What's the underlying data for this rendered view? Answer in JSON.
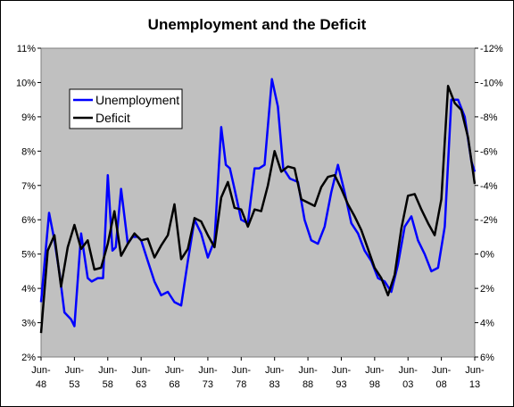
{
  "chart_data": {
    "type": "line",
    "title": "Unemployment and the Deficit",
    "x_tick_labels": [
      [
        "Jun-",
        "48"
      ],
      [
        "Jun-",
        "53"
      ],
      [
        "Jun-",
        "58"
      ],
      [
        "Jun-",
        "63"
      ],
      [
        "Jun-",
        "68"
      ],
      [
        "Jun-",
        "73"
      ],
      [
        "Jun-",
        "78"
      ],
      [
        "Jun-",
        "83"
      ],
      [
        "Jun-",
        "88"
      ],
      [
        "Jun-",
        "93"
      ],
      [
        "Jun-",
        "98"
      ],
      [
        "Jun-",
        "03"
      ],
      [
        "Jun-",
        "08"
      ],
      [
        "Jun-",
        "13"
      ]
    ],
    "x_range": [
      1948.0,
      2013.0
    ],
    "y_left": {
      "range": [
        2,
        11
      ],
      "ticks": [
        2,
        3,
        4,
        5,
        6,
        7,
        8,
        9,
        10,
        11
      ],
      "tick_labels": [
        "2%",
        "3%",
        "4%",
        "5%",
        "6%",
        "7%",
        "8%",
        "9%",
        "10%",
        "11%"
      ]
    },
    "y_right": {
      "range": [
        6,
        -12
      ],
      "note_inverted": true,
      "ticks": [
        6,
        4,
        2,
        0,
        -2,
        -4,
        -6,
        -8,
        -10,
        -12
      ],
      "tick_labels": [
        "6%",
        "4%",
        "2%",
        "0%",
        "-2%",
        "-4%",
        "-6%",
        "-8%",
        "-10%",
        "-12%"
      ]
    },
    "grid": false,
    "legend_position": "top-left",
    "series": [
      {
        "name": "Unemployment",
        "axis": "left",
        "color": "#0000ff",
        "x": [
          1948.0,
          1949.2,
          1950.0,
          1950.8,
          1951.5,
          1952.5,
          1953.0,
          1954.0,
          1955.0,
          1955.6,
          1956.5,
          1957.3,
          1958.0,
          1958.7,
          1959.2,
          1960.0,
          1961.0,
          1961.7,
          1962.5,
          1963.0,
          1964.0,
          1965.0,
          1966.0,
          1967.0,
          1968.0,
          1969.0,
          1970.0,
          1971.0,
          1972.0,
          1973.0,
          1974.0,
          1975.0,
          1975.7,
          1976.3,
          1977.0,
          1978.0,
          1979.0,
          1980.0,
          1980.7,
          1981.5,
          1982.6,
          1983.5,
          1984.3,
          1985.3,
          1986.5,
          1987.5,
          1988.5,
          1989.5,
          1990.5,
          1991.5,
          1992.5,
          1993.5,
          1994.5,
          1995.5,
          1996.5,
          1997.5,
          1998.5,
          1999.5,
          2000.5,
          2001.5,
          2002.5,
          2003.5,
          2004.5,
          2005.5,
          2006.5,
          2007.5,
          2008.5,
          2009.5,
          2010.5,
          2011.5,
          2012.5,
          2013.0
        ],
        "values": [
          3.6,
          6.2,
          5.4,
          4.4,
          3.3,
          3.1,
          2.9,
          5.6,
          4.3,
          4.2,
          4.3,
          4.3,
          7.3,
          5.1,
          5.2,
          6.9,
          5.3,
          5.5,
          5.5,
          5.4,
          4.8,
          4.2,
          3.8,
          3.9,
          3.6,
          3.5,
          4.8,
          6.0,
          5.6,
          4.9,
          5.4,
          8.7,
          7.6,
          7.5,
          6.9,
          6.0,
          5.9,
          7.5,
          7.5,
          7.6,
          10.1,
          9.3,
          7.5,
          7.2,
          7.1,
          6.0,
          5.4,
          5.3,
          5.8,
          6.8,
          7.6,
          6.8,
          5.9,
          5.6,
          5.1,
          4.8,
          4.3,
          4.2,
          3.9,
          4.7,
          5.8,
          6.1,
          5.4,
          5.0,
          4.5,
          4.6,
          5.8,
          9.5,
          9.5,
          9.0,
          7.7,
          7.4
        ]
      },
      {
        "name": "Deficit",
        "axis": "right",
        "color": "#000000",
        "x": [
          1948.0,
          1949.0,
          1950.0,
          1951.0,
          1952.0,
          1953.0,
          1954.0,
          1955.0,
          1956.0,
          1957.0,
          1958.0,
          1959.0,
          1960.0,
          1961.0,
          1962.0,
          1963.0,
          1964.0,
          1965.0,
          1966.0,
          1967.0,
          1968.0,
          1969.0,
          1970.0,
          1971.0,
          1972.0,
          1973.0,
          1974.0,
          1975.0,
          1976.0,
          1977.0,
          1978.0,
          1979.0,
          1980.0,
          1981.0,
          1982.0,
          1983.0,
          1984.0,
          1985.0,
          1986.0,
          1987.0,
          1988.0,
          1989.0,
          1990.0,
          1991.0,
          1992.0,
          1993.0,
          1994.0,
          1995.0,
          1996.0,
          1997.0,
          1998.0,
          1999.0,
          2000.0,
          2001.0,
          2002.0,
          2003.0,
          2004.0,
          2005.0,
          2006.0,
          2007.0,
          2008.0,
          2009.0,
          2010.0,
          2011.0,
          2012.0,
          2013.0
        ],
        "values": [
          4.6,
          -0.2,
          -1.1,
          1.9,
          -0.4,
          -1.7,
          -0.3,
          -0.8,
          0.9,
          0.8,
          -0.6,
          -2.5,
          0.1,
          -0.6,
          -1.2,
          -0.8,
          -0.9,
          0.2,
          -0.5,
          -1.1,
          -2.9,
          0.3,
          -0.3,
          -2.1,
          -1.9,
          -1.1,
          -0.4,
          -3.3,
          -4.2,
          -2.7,
          -2.6,
          -1.6,
          -2.6,
          -2.5,
          -4.0,
          -6.0,
          -4.8,
          -5.1,
          -5.0,
          -3.2,
          -3.0,
          -2.8,
          -3.9,
          -4.5,
          -4.6,
          -3.8,
          -2.9,
          -2.2,
          -1.4,
          -0.3,
          0.8,
          1.4,
          2.4,
          1.2,
          -1.5,
          -3.4,
          -3.5,
          -2.6,
          -1.8,
          -1.1,
          -3.2,
          -9.8,
          -8.8,
          -8.4,
          -6.8,
          -4.1
        ]
      }
    ]
  }
}
